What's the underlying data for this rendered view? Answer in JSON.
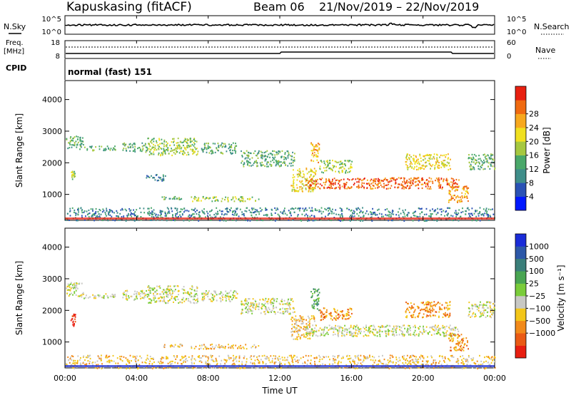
{
  "header": {
    "title": "Kapuskasing (fitACF)",
    "beam": "Beam 06",
    "date_range": "21/Nov/2019 – 22/Nov/2019"
  },
  "strips": {
    "nsky": {
      "label": "N.Sky",
      "ticks_left": [
        "10^5",
        "10^0"
      ],
      "ticks_right": [
        "10^5",
        "10^0"
      ],
      "right_label": "N.Search"
    },
    "freq": {
      "label_top": "Freq.",
      "label_unit": "[MHz]",
      "ticks_left": [
        "18",
        "8"
      ],
      "ticks_right": [
        "60",
        "0"
      ],
      "right_label": "Nave"
    },
    "cpid": {
      "label": "CPID",
      "value": "normal (fast) 151"
    }
  },
  "chart_data": [
    {
      "type": "heatmap",
      "panel": "power",
      "ylabel": "Slant Range [km]",
      "yticks": [
        1000,
        2000,
        3000,
        4000
      ],
      "ylim": [
        180,
        4600
      ],
      "xlim": [
        0,
        24
      ],
      "colorbar": {
        "label": "Power [dB]",
        "ticks": [
          "4",
          "8",
          "12",
          "16",
          "20",
          "24",
          "28"
        ],
        "colors": [
          "#0018ff",
          "#2a52b5",
          "#3f8e8a",
          "#4aa86a",
          "#a6c840",
          "#f0e020",
          "#f7a81e",
          "#f06a10",
          "#e82010"
        ]
      },
      "regions": [
        {
          "t": [
            0.05,
            1.0
          ],
          "r": [
            2450,
            2900
          ],
          "level": 3
        },
        {
          "t": [
            0.3,
            0.55
          ],
          "r": [
            1500,
            1750
          ],
          "level": 4
        },
        {
          "t": [
            1.0,
            2.8
          ],
          "r": [
            2400,
            2550
          ],
          "level": 3
        },
        {
          "t": [
            3.2,
            4.6
          ],
          "r": [
            2350,
            2650
          ],
          "level": 3
        },
        {
          "t": [
            4.6,
            7.4
          ],
          "r": [
            2250,
            2800
          ],
          "level": 4
        },
        {
          "t": [
            7.6,
            9.6
          ],
          "r": [
            2300,
            2650
          ],
          "level": 3
        },
        {
          "t": [
            9.8,
            12.8
          ],
          "r": [
            1900,
            2400
          ],
          "level": 3
        },
        {
          "t": [
            4.5,
            5.6
          ],
          "r": [
            1450,
            1650
          ],
          "level": 2
        },
        {
          "t": [
            5.4,
            6.6
          ],
          "r": [
            850,
            950
          ],
          "level": 3
        },
        {
          "t": [
            7.0,
            10.8
          ],
          "r": [
            800,
            950
          ],
          "level": 4
        },
        {
          "t": [
            12.6,
            14.0
          ],
          "r": [
            1100,
            1850
          ],
          "level": 5
        },
        {
          "t": [
            13.4,
            22.0
          ],
          "r": [
            1200,
            1550
          ],
          "level": 7
        },
        {
          "t": [
            13.7,
            14.2
          ],
          "r": [
            2000,
            2700
          ],
          "level": 6
        },
        {
          "t": [
            14.2,
            16.0
          ],
          "r": [
            1700,
            2100
          ],
          "level": 4
        },
        {
          "t": [
            19.0,
            21.5
          ],
          "r": [
            1800,
            2300
          ],
          "level": 5
        },
        {
          "t": [
            21.4,
            22.5
          ],
          "r": [
            750,
            1300
          ],
          "level": 6
        },
        {
          "t": [
            22.5,
            24.0
          ],
          "r": [
            1800,
            2300
          ],
          "level": 3
        },
        {
          "t": [
            0.0,
            24.0
          ],
          "r": [
            180,
            600
          ],
          "level": 2
        }
      ]
    },
    {
      "type": "heatmap",
      "panel": "velocity",
      "xlabel": "Time UT",
      "xticks": [
        "00:00",
        "04:00",
        "08:00",
        "12:00",
        "16:00",
        "20:00",
        "00:00"
      ],
      "ylabel": "Slant Range [km]",
      "yticks": [
        1000,
        2000,
        3000,
        4000
      ],
      "ylim": [
        180,
        4600
      ],
      "xlim": [
        0,
        24
      ],
      "colorbar": {
        "label": "Velocity [m s⁻¹]",
        "ticks": [
          "1000",
          "500",
          "100",
          "25",
          "−25",
          "−100",
          "−500",
          "−1000"
        ],
        "colors": [
          "#1a2cd8",
          "#2d58a8",
          "#3b7f7a",
          "#49a552",
          "#7acc3a",
          "#c8c8c4",
          "#f3c619",
          "#f28a1a",
          "#ea5a14",
          "#e81e10"
        ]
      },
      "regions": [
        {
          "t": [
            0.05,
            1.0
          ],
          "r": [
            2450,
            2900
          ],
          "level": 5
        },
        {
          "t": [
            0.3,
            0.55
          ],
          "r": [
            1500,
            1900
          ],
          "level": 9
        },
        {
          "t": [
            1.0,
            2.8
          ],
          "r": [
            2400,
            2550
          ],
          "level": 5
        },
        {
          "t": [
            3.2,
            4.6
          ],
          "r": [
            2350,
            2650
          ],
          "level": 5
        },
        {
          "t": [
            4.6,
            7.4
          ],
          "r": [
            2250,
            2800
          ],
          "level": 5
        },
        {
          "t": [
            7.6,
            9.6
          ],
          "r": [
            2300,
            2650
          ],
          "level": 5
        },
        {
          "t": [
            9.8,
            12.8
          ],
          "r": [
            1900,
            2400
          ],
          "level": 5
        },
        {
          "t": [
            5.4,
            6.6
          ],
          "r": [
            850,
            950
          ],
          "level": 6
        },
        {
          "t": [
            7.0,
            10.8
          ],
          "r": [
            800,
            950
          ],
          "level": 6
        },
        {
          "t": [
            12.6,
            14.0
          ],
          "r": [
            1100,
            1850
          ],
          "level": 6
        },
        {
          "t": [
            13.4,
            22.0
          ],
          "r": [
            1200,
            1550
          ],
          "level": 5
        },
        {
          "t": [
            13.7,
            14.2
          ],
          "r": [
            2000,
            2700
          ],
          "level": 3
        },
        {
          "t": [
            14.2,
            16.0
          ],
          "r": [
            1700,
            2100
          ],
          "level": 7
        },
        {
          "t": [
            19.0,
            21.5
          ],
          "r": [
            1800,
            2300
          ],
          "level": 7
        },
        {
          "t": [
            21.4,
            22.5
          ],
          "r": [
            750,
            1300
          ],
          "level": 7
        },
        {
          "t": [
            22.5,
            24.0
          ],
          "r": [
            1800,
            2300
          ],
          "level": 5
        },
        {
          "t": [
            0.0,
            24.0
          ],
          "r": [
            180,
            600
          ],
          "level": 6
        }
      ]
    }
  ]
}
